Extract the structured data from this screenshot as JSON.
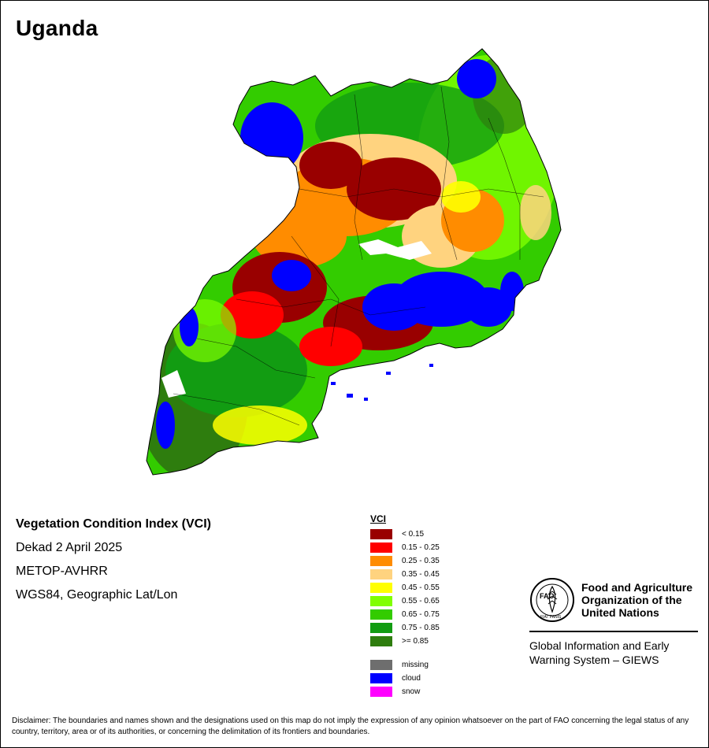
{
  "title": "Uganda",
  "info": {
    "index_name": "Vegetation Condition Index (VCI)",
    "period": "Dekad 2 April 2025",
    "sensor": "METOP-AVHRR",
    "projection": "WGS84, Geographic Lat/Lon"
  },
  "legend": {
    "title": "VCI",
    "classes": [
      {
        "label": "< 0.15",
        "color": "#990000"
      },
      {
        "label": "0.15 - 0.25",
        "color": "#ff0000"
      },
      {
        "label": "0.25 - 0.35",
        "color": "#ff8c00"
      },
      {
        "label": "0.35 - 0.45",
        "color": "#ffd37f"
      },
      {
        "label": "0.45 - 0.55",
        "color": "#ffff00"
      },
      {
        "label": "0.55 - 0.65",
        "color": "#80ff00"
      },
      {
        "label": "0.65 - 0.75",
        "color": "#33cc00"
      },
      {
        "label": "0.75 - 0.85",
        "color": "#129c12"
      },
      {
        "label": ">= 0.85",
        "color": "#2e7d0e"
      }
    ],
    "special": [
      {
        "label": "missing",
        "color": "#6e6e6e"
      },
      {
        "label": "cloud",
        "color": "#0000ff"
      },
      {
        "label": "snow",
        "color": "#ff00ff"
      }
    ]
  },
  "organization": {
    "logo_text": "FAO",
    "logo_motto": "FIAT PANIS",
    "name_line1": "Food and Agriculture",
    "name_line2": "Organization of the",
    "name_line3": "United Nations",
    "system_line1": "Global Information and Early",
    "system_line2": "Warning System – GIEWS"
  },
  "disclaimer": "Disclaimer: The boundaries and names shown and the designations used on this map do not imply the expression of any opinion whatsoever on the part of FAO concerning the legal status of any country, territory, area or of its authorities, or concerning the delimitation of its frontiers and boundaries."
}
